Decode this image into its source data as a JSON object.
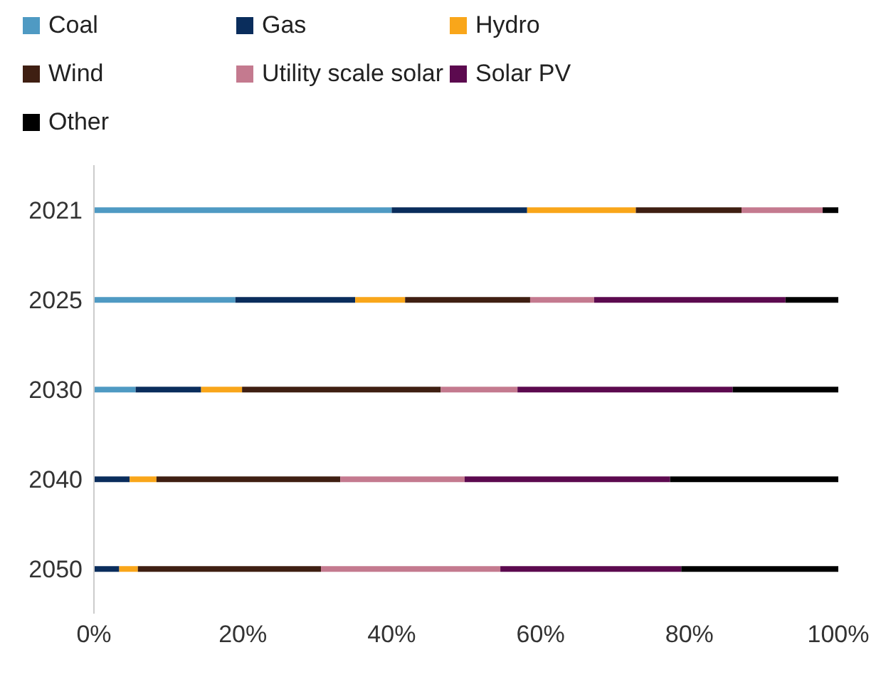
{
  "chart_data": {
    "type": "bar",
    "orientation": "horizontal",
    "stacked": true,
    "categories": [
      "2021",
      "2025",
      "2030",
      "2040",
      "2050"
    ],
    "series": [
      {
        "name": "Coal",
        "color": "#4f9ac3",
        "values": [
          40.0,
          19.0,
          5.6,
          0,
          0
        ]
      },
      {
        "name": "Gas",
        "color": "#0a2d5c",
        "values": [
          18.2,
          16.1,
          8.8,
          4.8,
          3.4
        ]
      },
      {
        "name": "Hydro",
        "color": "#f9a61a",
        "values": [
          14.6,
          6.7,
          5.5,
          3.6,
          2.5
        ]
      },
      {
        "name": "Wind",
        "color": "#3f1f12",
        "values": [
          14.2,
          16.8,
          26.7,
          24.7,
          24.6
        ]
      },
      {
        "name": "Utility scale solar",
        "color": "#c47a8f",
        "values": [
          10.9,
          8.6,
          10.3,
          16.7,
          24.1
        ]
      },
      {
        "name": "Solar PV",
        "color": "#5c0a4f",
        "values": [
          0,
          25.7,
          28.9,
          27.6,
          24.3
        ]
      },
      {
        "name": "Other",
        "color": "#000000",
        "values": [
          2.1,
          7.1,
          14.2,
          22.6,
          21.1
        ]
      }
    ],
    "xlim": [
      0,
      100
    ],
    "xticks": [
      {
        "value": 0,
        "label": "0%"
      },
      {
        "value": 20,
        "label": "20%"
      },
      {
        "value": 40,
        "label": "40%"
      },
      {
        "value": 60,
        "label": "60%"
      },
      {
        "value": 80,
        "label": "80%"
      },
      {
        "value": 100,
        "label": "100%"
      }
    ],
    "legend": "top left",
    "grid": false
  }
}
